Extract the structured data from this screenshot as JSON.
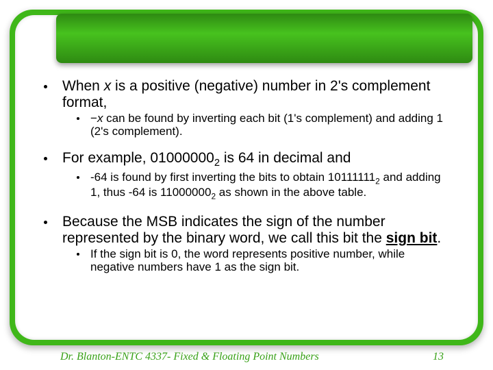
{
  "colors": {
    "accent_green": "#3fb719",
    "text": "#000000",
    "footer_text": "#37a016",
    "background": "#ffffff"
  },
  "bullets": {
    "b1_p1": "When ",
    "b1_x": "x",
    "b1_p2": " is a positive (negative) number in 2's complement format,",
    "b1s_p1": "−",
    "b1s_x": "x",
    "b1s_p2": " can be found by inverting each bit (1's complement) and adding 1 (2's complement).",
    "b2_p1": "For example, 01000000",
    "b2_sub": "2",
    "b2_p2": " is 64 in decimal and",
    "b2s_p1": "-64 is found by first inverting the bits to obtain 10111111",
    "b2s_sub1": "2",
    "b2s_p2": " and adding 1, thus -64 is 11000000",
    "b2s_sub2": "2",
    "b2s_p3": " as shown in the above table.",
    "b3_p1": "Because the MSB indicates the sign of the number represented by the binary word, we call this bit the ",
    "b3_sign": "sign bit",
    "b3_p2": ".",
    "b3s": "If the sign bit is 0, the word represents positive number, while negative numbers have 1 as the sign bit."
  },
  "footer": {
    "author": "Dr. Blanton",
    "sep": "  -  ",
    "course": "ENTC 4337",
    "title": "Fixed & Floating Point Numbers",
    "page": "13"
  }
}
